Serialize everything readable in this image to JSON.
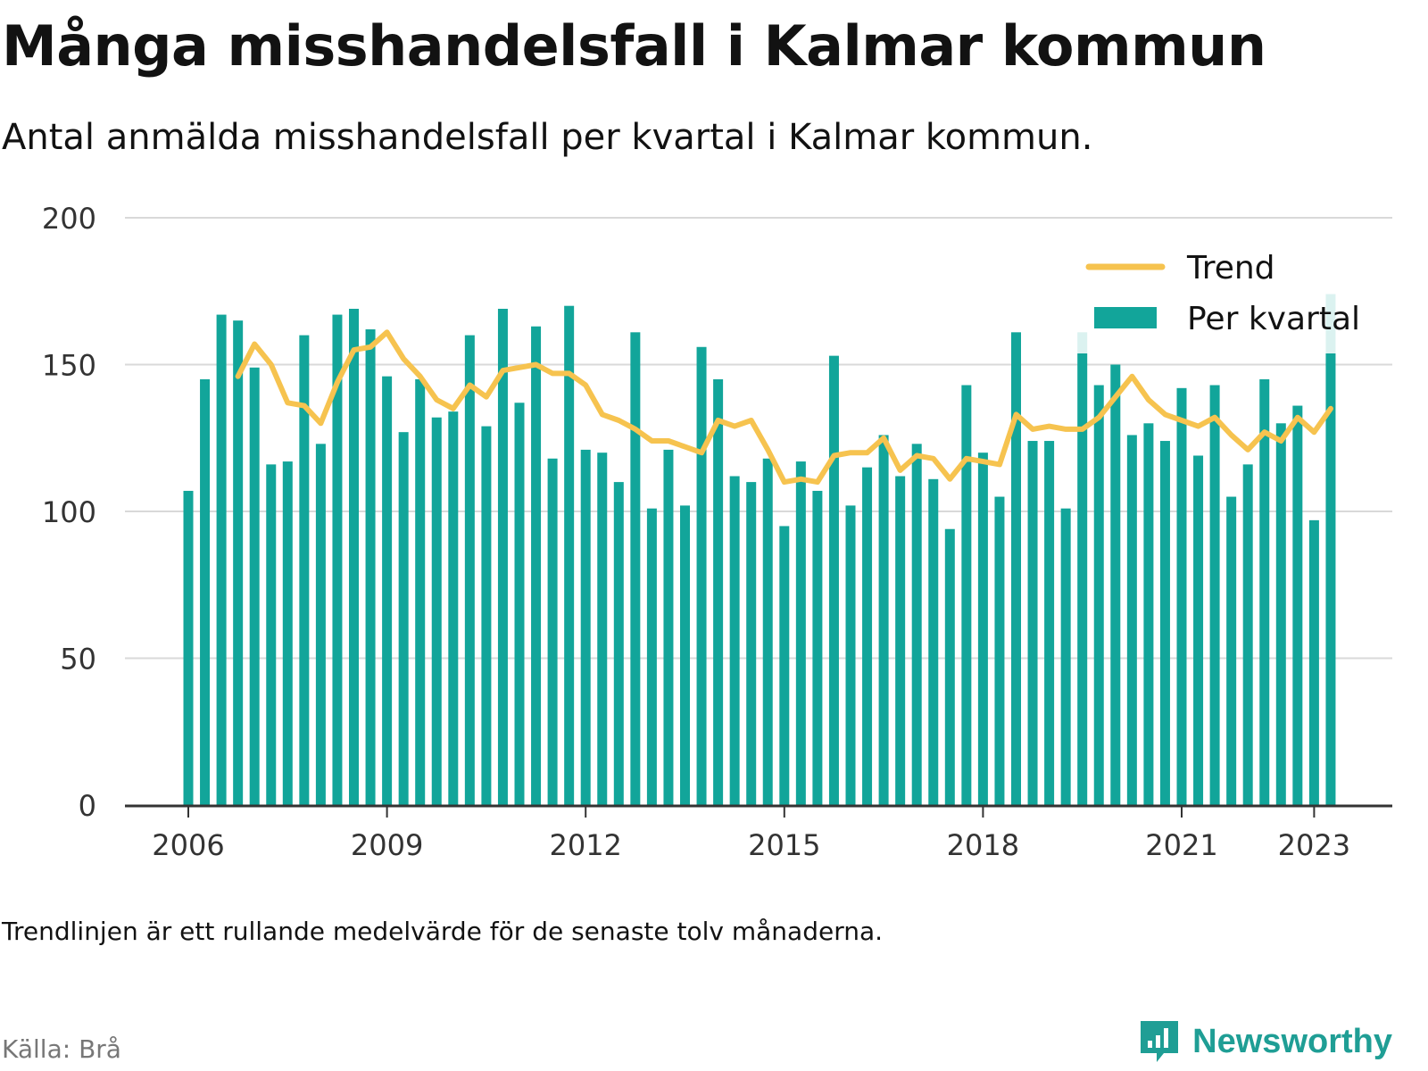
{
  "header": {
    "title": "Många misshandelsfall i Kalmar kommun",
    "subtitle": "Antal anmälda misshandelsfall per kvartal i Kalmar kommun."
  },
  "footer": {
    "note": "Trendlinjen är ett rullande medelvärde för de senaste tolv månaderna.",
    "source": "Källa: Brå",
    "brand": "Newsworthy"
  },
  "colors": {
    "bars": "#12a59a",
    "trend": "#f6c34f",
    "brand": "#1f9e95"
  },
  "chart_data": {
    "type": "bar",
    "title": "Många misshandelsfall i Kalmar kommun",
    "ylim": [
      0,
      200
    ],
    "yticks": [
      "0",
      "50",
      "100",
      "150",
      "200"
    ],
    "xticks": [
      "2006",
      "2009",
      "2012",
      "2015",
      "2018",
      "2021",
      "2023"
    ],
    "categories": [
      "2006 Q1",
      "2006 Q2",
      "2006 Q3",
      "2006 Q4",
      "2007 Q1",
      "2007 Q2",
      "2007 Q3",
      "2007 Q4",
      "2008 Q1",
      "2008 Q2",
      "2008 Q3",
      "2008 Q4",
      "2009 Q1",
      "2009 Q2",
      "2009 Q3",
      "2009 Q4",
      "2010 Q1",
      "2010 Q2",
      "2010 Q3",
      "2010 Q4",
      "2011 Q1",
      "2011 Q2",
      "2011 Q3",
      "2011 Q4",
      "2012 Q1",
      "2012 Q2",
      "2012 Q3",
      "2012 Q4",
      "2013 Q1",
      "2013 Q2",
      "2013 Q3",
      "2013 Q4",
      "2014 Q1",
      "2014 Q2",
      "2014 Q3",
      "2014 Q4",
      "2015 Q1",
      "2015 Q2",
      "2015 Q3",
      "2015 Q4",
      "2016 Q1",
      "2016 Q2",
      "2016 Q3",
      "2016 Q4",
      "2017 Q1",
      "2017 Q2",
      "2017 Q3",
      "2017 Q4",
      "2018 Q1",
      "2018 Q2",
      "2018 Q3",
      "2018 Q4",
      "2019 Q1",
      "2019 Q2",
      "2019 Q3",
      "2019 Q4",
      "2020 Q1",
      "2020 Q2",
      "2020 Q3",
      "2020 Q4",
      "2021 Q1",
      "2021 Q2",
      "2021 Q3",
      "2021 Q4",
      "2022 Q1",
      "2022 Q2",
      "2022 Q3",
      "2022 Q4",
      "2023 Q1",
      "2023 Q2"
    ],
    "legend": {
      "position": "top-right"
    },
    "series": [
      {
        "name": "Per kvartal",
        "type": "bar",
        "values": [
          107,
          145,
          167,
          165,
          149,
          116,
          117,
          160,
          123,
          167,
          169,
          162,
          146,
          127,
          145,
          132,
          134,
          160,
          129,
          169,
          137,
          163,
          118,
          170,
          121,
          120,
          110,
          161,
          101,
          121,
          102,
          156,
          145,
          112,
          110,
          118,
          95,
          117,
          107,
          153,
          102,
          115,
          126,
          112,
          123,
          111,
          94,
          143,
          120,
          105,
          161,
          124,
          124,
          101,
          161,
          143,
          150,
          126,
          130,
          124,
          142,
          119,
          143,
          105,
          116,
          145,
          130,
          136,
          97,
          174
        ]
      },
      {
        "name": "Trend",
        "type": "line",
        "values": [
          null,
          null,
          null,
          146,
          157,
          150,
          137,
          136,
          130,
          144,
          155,
          156,
          161,
          152,
          146,
          138,
          135,
          143,
          139,
          148,
          149,
          150,
          147,
          147,
          143,
          133,
          131,
          128,
          124,
          124,
          122,
          120,
          131,
          129,
          131,
          121,
          110,
          111,
          110,
          119,
          120,
          120,
          125,
          114,
          119,
          118,
          111,
          118,
          117,
          116,
          133,
          128,
          129,
          128,
          128,
          132,
          139,
          146,
          138,
          133,
          131,
          129,
          132,
          126,
          121,
          127,
          124,
          132,
          127,
          135
        ]
      }
    ]
  }
}
